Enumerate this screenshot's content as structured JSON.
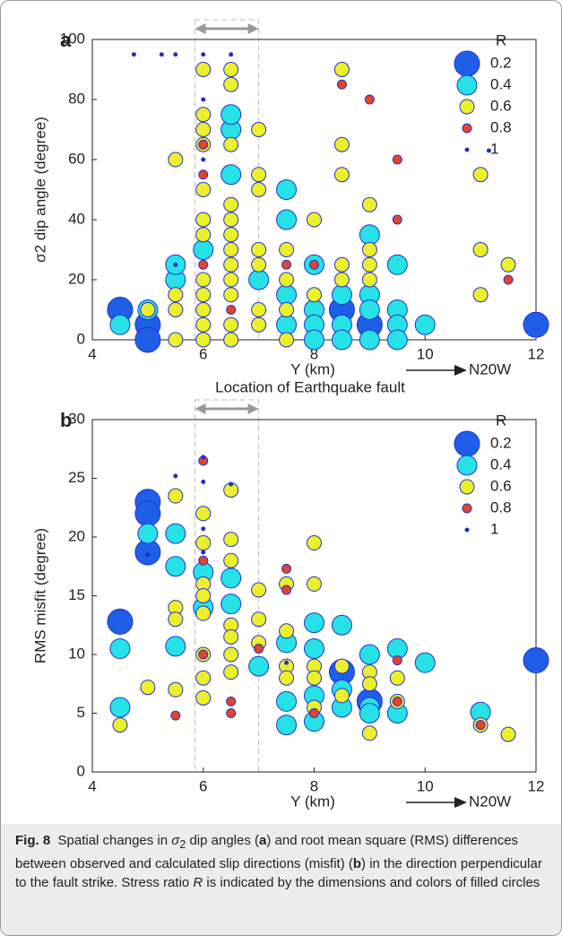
{
  "chart_data": [
    {
      "type": "scatter",
      "panel_label": "a",
      "x_label": "Y (km)",
      "y_label": "σ2 dip angle (degree)",
      "direction_label": "N20W",
      "legend_title": "R",
      "legend_position": "upper right",
      "fault_zone": [
        5.85,
        7
      ],
      "xlim": [
        4,
        12
      ],
      "xticks": [
        4,
        6,
        8,
        10,
        12
      ],
      "ylim": [
        0,
        100
      ],
      "yticks": [
        0,
        20,
        40,
        60,
        80,
        100
      ],
      "series": [
        {
          "name": "0.2",
          "color": "#1f5fe8",
          "x": [
            4.5,
            5,
            5,
            8.5,
            9,
            12
          ],
          "y": [
            10,
            5,
            0,
            10,
            5,
            5
          ]
        },
        {
          "name": "0.4",
          "color": "#26e2e6",
          "x": [
            4.5,
            5,
            5.5,
            5.5,
            6,
            6.5,
            6.5,
            6.5,
            7,
            7.5,
            7.5,
            7.5,
            7.5,
            8,
            8,
            8,
            8,
            8.5,
            8.5,
            8.5,
            9,
            9,
            9,
            9,
            9.5,
            9.5,
            9.5,
            9.5,
            10
          ],
          "y": [
            5,
            10,
            20,
            25,
            30,
            70,
            75,
            55,
            20,
            50,
            40,
            15,
            5,
            25,
            10,
            5,
            0,
            15,
            5,
            0,
            35,
            15,
            10,
            0,
            25,
            10,
            5,
            0,
            5
          ]
        },
        {
          "name": "0.6",
          "color": "#ecf02a",
          "x": [
            5,
            5.5,
            5.5,
            5.5,
            5.5,
            6,
            6,
            6,
            6,
            6,
            6,
            6,
            6,
            6,
            6,
            6,
            6,
            6.5,
            6.5,
            6.5,
            6.5,
            6.5,
            6.5,
            6.5,
            6.5,
            6.5,
            6.5,
            6.5,
            6.5,
            7,
            7,
            7,
            7,
            7,
            7,
            7,
            7.5,
            7.5,
            7.5,
            7.5,
            8,
            8,
            8.5,
            8.5,
            8.5,
            8.5,
            8.5,
            9,
            9,
            9,
            9,
            11,
            11,
            11,
            11.5
          ],
          "y": [
            10,
            15,
            10,
            0,
            60,
            90,
            75,
            70,
            65,
            50,
            40,
            35,
            20,
            15,
            10,
            5,
            0,
            90,
            85,
            65,
            45,
            40,
            35,
            30,
            25,
            20,
            15,
            5,
            0,
            70,
            55,
            50,
            30,
            25,
            10,
            5,
            30,
            20,
            10,
            0,
            40,
            15,
            90,
            65,
            55,
            25,
            20,
            45,
            30,
            25,
            20,
            55,
            30,
            15,
            25
          ]
        },
        {
          "name": "0.8",
          "color": "#e8432a",
          "x": [
            6,
            6,
            6,
            6.5,
            7.5,
            8,
            8.5,
            9,
            9.5,
            9.5,
            11.5
          ],
          "y": [
            25,
            65,
            55,
            10,
            25,
            25,
            85,
            80,
            60,
            40,
            20
          ]
        },
        {
          "name": "1",
          "color": "#2a2aa8",
          "x": [
            4.75,
            5.25,
            5.5,
            6,
            6.5,
            6,
            6,
            5.5,
            11.15
          ],
          "y": [
            95,
            95,
            95,
            95,
            95,
            80,
            60,
            25,
            63
          ]
        }
      ]
    },
    {
      "type": "scatter",
      "panel_label": "b",
      "title": "Location of Earthquake fault",
      "x_label": "Y (km)",
      "y_label": "RMS misfit (degree)",
      "direction_label": "N20W",
      "legend_title": "R",
      "legend_position": "upper right",
      "fault_zone": [
        5.85,
        7
      ],
      "xlim": [
        4,
        12
      ],
      "xticks": [
        4,
        6,
        8,
        10,
        12
      ],
      "ylim": [
        0,
        30
      ],
      "yticks": [
        0,
        5,
        10,
        15,
        20,
        25,
        30
      ],
      "series": [
        {
          "name": "0.2",
          "color": "#1f5fe8",
          "x": [
            4.5,
            5,
            5,
            5,
            8.5,
            9,
            12
          ],
          "y": [
            12.8,
            23,
            22,
            18.7,
            8.5,
            6,
            9.5
          ]
        },
        {
          "name": "0.4",
          "color": "#26e2e6",
          "x": [
            4.5,
            4.5,
            5,
            5.5,
            5.5,
            5.5,
            6,
            6,
            6.5,
            6.5,
            7,
            7.5,
            7.5,
            7.5,
            8,
            8,
            8,
            8,
            8.5,
            8.5,
            8.5,
            9,
            9,
            9,
            9.5,
            9.5,
            10,
            11
          ],
          "y": [
            10.5,
            5.5,
            20.3,
            20.3,
            17.5,
            10.7,
            17,
            14,
            16.5,
            14.3,
            9,
            11,
            6,
            4,
            12.7,
            10.5,
            6.5,
            4.3,
            12.5,
            7,
            5.5,
            10,
            5.5,
            5,
            10.5,
            5,
            9.3,
            5.1
          ]
        },
        {
          "name": "0.6",
          "color": "#ecf02a",
          "x": [
            4.5,
            5,
            5.5,
            5.5,
            5.5,
            5.5,
            6,
            6,
            6,
            6,
            6,
            6,
            6,
            6,
            6.5,
            6.5,
            6.5,
            6.5,
            6.5,
            6.5,
            6.5,
            7,
            7,
            7,
            7.5,
            7.5,
            7.5,
            7.5,
            8,
            8,
            8,
            8,
            8,
            8.5,
            8.5,
            9,
            9,
            9,
            9.5,
            9.5,
            11,
            11.5
          ],
          "y": [
            4,
            7.2,
            23.5,
            14,
            13,
            7,
            22,
            19.5,
            16,
            15,
            13.5,
            10,
            8,
            6.3,
            24,
            19.8,
            18,
            12.5,
            11.5,
            10,
            8.5,
            15.5,
            13,
            11,
            16,
            12,
            9,
            8,
            19.5,
            16,
            9,
            8,
            5.5,
            9,
            6.5,
            8.5,
            7.5,
            3.3,
            8,
            6,
            4,
            3.2
          ]
        },
        {
          "name": "0.8",
          "color": "#e8432a",
          "x": [
            5.5,
            6,
            6,
            6,
            6.5,
            6.5,
            7,
            7.5,
            7.5,
            8,
            9.5,
            9.5,
            11
          ],
          "y": [
            4.8,
            26.5,
            18,
            10,
            6,
            5,
            10.5,
            17.3,
            15.5,
            5,
            6,
            9.5,
            4
          ]
        },
        {
          "name": "1",
          "color": "#2a2aa8",
          "x": [
            5.5,
            6,
            6,
            6,
            6,
            5,
            6.5,
            7.5
          ],
          "y": [
            25.2,
            26.8,
            24.7,
            20.7,
            18.7,
            18.5,
            24.5,
            9.3
          ]
        }
      ]
    }
  ],
  "caption": {
    "label": "Fig. 8",
    "parts": [
      "Spatial changes in ",
      "σ",
      "2",
      " dip angles (",
      "a",
      ") and root mean square (RMS) differences between observed and calculated slip directions (misfit) (",
      "b",
      ") in the direction perpendicular to the fault strike. Stress ratio ",
      "R",
      " is indicated by the dimensions and colors of filled circles"
    ]
  }
}
